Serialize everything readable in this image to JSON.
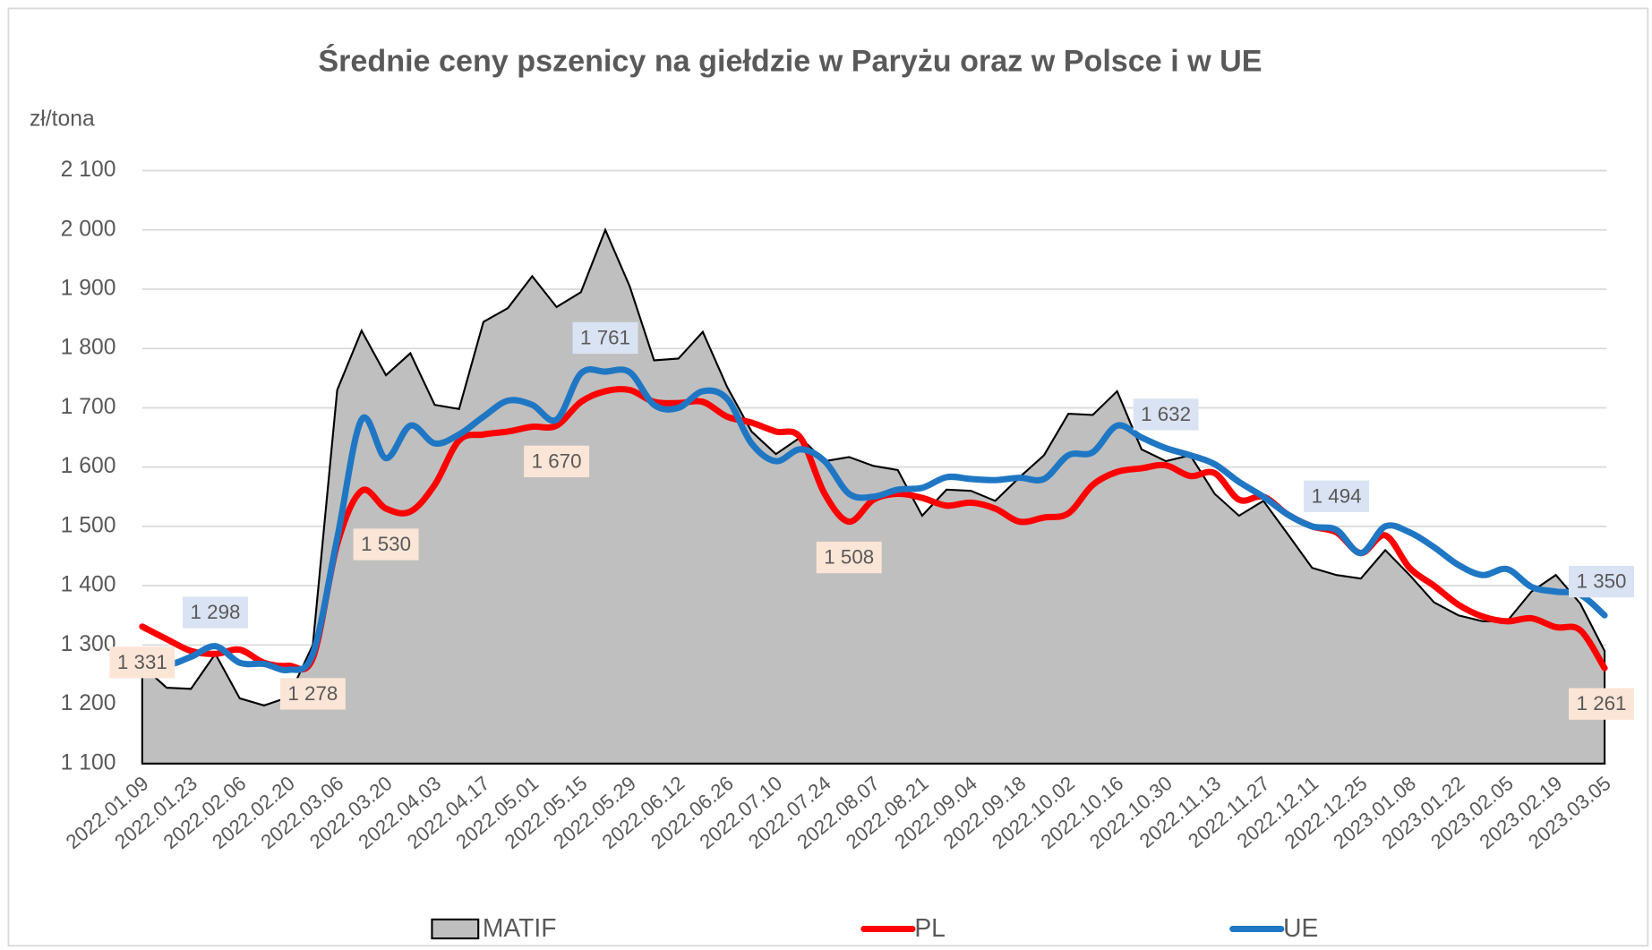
{
  "chart_data": {
    "type": "line",
    "title": "Średnie ceny pszenicy na giełdzie w Paryżu oraz w Polsce i w UE",
    "y_label": "zł/tona",
    "categories": [
      "2022.01.09",
      null,
      "2022.01.23",
      null,
      "2022.02.06",
      null,
      "2022.02.20",
      null,
      "2022.03.06",
      null,
      "2022.03.20",
      null,
      "2022.04.03",
      null,
      "2022.04.17",
      null,
      "2022.05.01",
      null,
      "2022.05.15",
      null,
      "2022.05.29",
      null,
      "2022.06.12",
      null,
      "2022.06.26",
      null,
      "2022.07.10",
      null,
      "2022.07.24",
      null,
      "2022.08.07",
      null,
      "2022.08.21",
      null,
      "2022.09.04",
      null,
      "2022.09.18",
      null,
      "2022.10.02",
      null,
      "2022.10.16",
      null,
      "2022.10.30",
      null,
      "2022.11.13",
      null,
      "2022.11.27",
      null,
      "2022.12.11",
      null,
      "2022.12.25",
      null,
      "2023.01.08",
      null,
      "2023.01.22",
      null,
      "2023.02.05",
      null,
      "2023.02.19",
      null,
      "2023.03.05"
    ],
    "ylim": [
      1100,
      2100
    ],
    "yticks": [
      {
        "value": 1100,
        "label": "1 100"
      },
      {
        "value": 1200,
        "label": "1 200"
      },
      {
        "value": 1300,
        "label": "1 300"
      },
      {
        "value": 1400,
        "label": "1 400"
      },
      {
        "value": 1500,
        "label": "1 500"
      },
      {
        "value": 1600,
        "label": "1 600"
      },
      {
        "value": 1700,
        "label": "1 700"
      },
      {
        "value": 1800,
        "label": "1 800"
      },
      {
        "value": 1900,
        "label": "1 900"
      },
      {
        "value": 2000,
        "label": "2 000"
      },
      {
        "value": 2100,
        "label": "2 100"
      }
    ],
    "grid": true,
    "legend": "bottom",
    "series": [
      {
        "name": "MATIF",
        "area": true,
        "color": "#bfbfbf",
        "line_color": "#000000",
        "values": [
          1265,
          1228,
          1226,
          1285,
          1210,
          1198,
          1212,
          1300,
          1730,
          1830,
          1755,
          1792,
          1705,
          1698,
          1845,
          1868,
          1922,
          1870,
          1895,
          2000,
          1905,
          1780,
          1783,
          1828,
          1735,
          1660,
          1622,
          1650,
          1610,
          1617,
          1602,
          1595,
          1518,
          1562,
          1560,
          1543,
          1583,
          1620,
          1690,
          1688,
          1728,
          1630,
          1610,
          1620,
          1555,
          1518,
          1543,
          1487,
          1430,
          1418,
          1412,
          1460,
          1418,
          1372,
          1350,
          1340,
          1340,
          1390,
          1418,
          1370,
          1290
        ]
      },
      {
        "name": "PL",
        "color": "#ff0000",
        "label_bg": "#fbe5d6",
        "label_side": "below",
        "values": [
          1331,
          1310,
          1290,
          1285,
          1292,
          1270,
          1265,
          1278,
          1470,
          1560,
          1530,
          1525,
          1570,
          1645,
          1655,
          1660,
          1668,
          1670,
          1710,
          1728,
          1730,
          1710,
          1708,
          1710,
          1685,
          1675,
          1660,
          1650,
          1555,
          1508,
          1545,
          1555,
          1548,
          1535,
          1540,
          1530,
          1508,
          1515,
          1522,
          1570,
          1592,
          1598,
          1603,
          1585,
          1590,
          1545,
          1550,
          1520,
          1500,
          1490,
          1455,
          1485,
          1430,
          1400,
          1368,
          1348,
          1340,
          1345,
          1330,
          1325,
          1261
        ],
        "value_labels": [
          "1 331",
          null,
          null,
          null,
          null,
          null,
          null,
          "1 278",
          null,
          null,
          "1 530",
          null,
          null,
          null,
          null,
          null,
          null,
          "1 670",
          null,
          null,
          null,
          null,
          null,
          null,
          null,
          null,
          null,
          null,
          null,
          "1 508",
          null,
          null,
          null,
          null,
          null,
          null,
          null,
          null,
          null,
          null,
          null,
          null,
          null,
          null,
          null,
          null,
          null,
          null,
          null,
          null,
          null,
          null,
          null,
          null,
          null,
          null,
          null,
          null,
          null,
          null,
          "1 261"
        ]
      },
      {
        "name": "UE",
        "color": "#1f77c4",
        "label_bg": "#dae3f3",
        "label_side": "above",
        "values": [
          1290,
          1268,
          1280,
          1298,
          1270,
          1268,
          1258,
          1285,
          1480,
          1680,
          1615,
          1670,
          1640,
          1655,
          1685,
          1712,
          1705,
          1680,
          1758,
          1761,
          1760,
          1705,
          1700,
          1728,
          1715,
          1640,
          1610,
          1630,
          1610,
          1555,
          1550,
          1562,
          1565,
          1583,
          1580,
          1578,
          1582,
          1580,
          1620,
          1625,
          1670,
          1650,
          1632,
          1620,
          1605,
          1575,
          1550,
          1520,
          1500,
          1494,
          1455,
          1500,
          1490,
          1465,
          1435,
          1418,
          1428,
          1398,
          1390,
          1385,
          1350
        ],
        "value_labels": [
          null,
          null,
          null,
          "1 298",
          null,
          null,
          null,
          null,
          null,
          null,
          null,
          null,
          null,
          null,
          null,
          null,
          null,
          null,
          null,
          "1 761",
          null,
          null,
          null,
          null,
          null,
          null,
          null,
          null,
          null,
          null,
          null,
          null,
          null,
          null,
          null,
          null,
          null,
          null,
          null,
          null,
          null,
          null,
          "1 632",
          null,
          null,
          null,
          null,
          null,
          null,
          "1 494",
          null,
          null,
          null,
          null,
          null,
          null,
          null,
          null,
          null,
          null,
          "1 350"
        ]
      }
    ]
  }
}
